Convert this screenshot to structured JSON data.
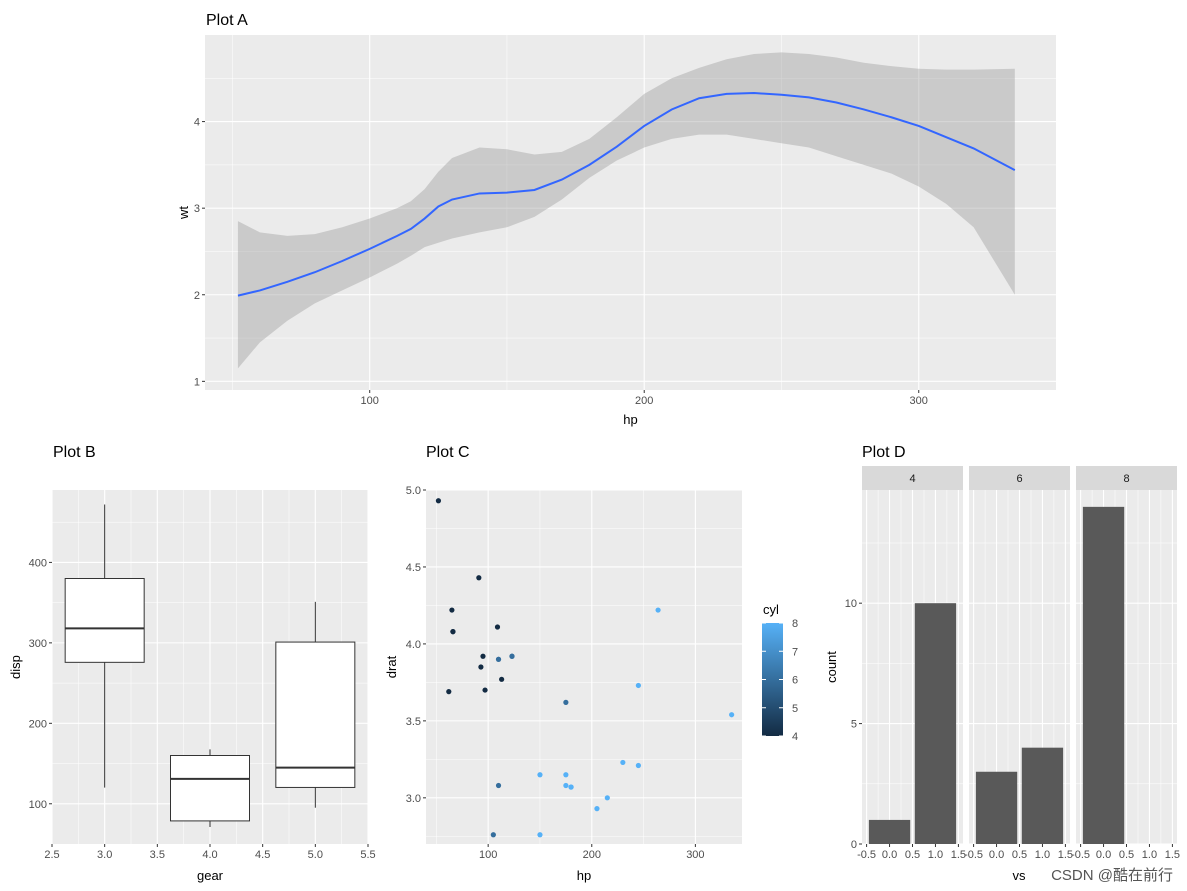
{
  "chart_data": [
    {
      "id": "A",
      "type": "line",
      "title": "Plot A",
      "xlabel": "hp",
      "ylabel": "wt",
      "xlim": [
        40,
        350
      ],
      "ylim": [
        0.9,
        5.0
      ],
      "xticks": [
        100,
        200,
        300
      ],
      "yticks": [
        1,
        2,
        3,
        4
      ],
      "series": [
        {
          "x": [
            52,
            60,
            70,
            80,
            90,
            100,
            110,
            115,
            120,
            125,
            130,
            140,
            150,
            160,
            170,
            180,
            190,
            200,
            210,
            220,
            230,
            240,
            250,
            260,
            270,
            280,
            290,
            300,
            310,
            320,
            335
          ],
          "y": [
            1.99,
            2.05,
            2.15,
            2.26,
            2.39,
            2.53,
            2.68,
            2.76,
            2.88,
            3.02,
            3.1,
            3.17,
            3.18,
            3.21,
            3.33,
            3.5,
            3.71,
            3.95,
            4.14,
            4.27,
            4.32,
            4.33,
            4.31,
            4.28,
            4.22,
            4.14,
            4.05,
            3.95,
            3.82,
            3.69,
            3.44
          ],
          "lower": [
            1.15,
            1.45,
            1.7,
            1.9,
            2.05,
            2.2,
            2.36,
            2.45,
            2.55,
            2.6,
            2.65,
            2.72,
            2.78,
            2.9,
            3.1,
            3.35,
            3.55,
            3.7,
            3.8,
            3.85,
            3.85,
            3.8,
            3.75,
            3.7,
            3.6,
            3.5,
            3.4,
            3.25,
            3.05,
            2.78,
            2.0
          ],
          "upper": [
            2.85,
            2.72,
            2.68,
            2.7,
            2.78,
            2.88,
            3.0,
            3.08,
            3.22,
            3.42,
            3.58,
            3.7,
            3.68,
            3.62,
            3.65,
            3.8,
            4.05,
            4.32,
            4.5,
            4.62,
            4.72,
            4.78,
            4.8,
            4.78,
            4.74,
            4.68,
            4.64,
            4.61,
            4.6,
            4.6,
            4.61
          ]
        }
      ]
    },
    {
      "id": "B",
      "type": "boxplot",
      "title": "Plot B",
      "xlabel": "gear",
      "ylabel": "disp",
      "xlim": [
        2.5,
        5.5
      ],
      "ylim": [
        50,
        490
      ],
      "xticks": [
        "2.5",
        "3.0",
        "3.5",
        "4.0",
        "4.5",
        "5.0",
        "5.5"
      ],
      "yticks": [
        100,
        200,
        300,
        400
      ],
      "boxes": [
        {
          "x": 3,
          "min": 120.1,
          "q1": 275.8,
          "median": 318,
          "q3": 380,
          "max": 472
        },
        {
          "x": 4,
          "min": 71.1,
          "q1": 78.7,
          "median": 130.9,
          "q3": 160,
          "max": 167.6
        },
        {
          "x": 5,
          "min": 95.1,
          "q1": 120.3,
          "median": 145,
          "q3": 301,
          "max": 351
        }
      ]
    },
    {
      "id": "C",
      "type": "scatter",
      "title": "Plot C",
      "xlabel": "hp",
      "ylabel": "drat",
      "xlim": [
        40,
        345
      ],
      "ylim": [
        2.7,
        5.0
      ],
      "xticks": [
        100,
        200,
        300
      ],
      "yticks": [
        "3.0",
        "3.5",
        "4.0",
        "4.5",
        "5.0"
      ],
      "legend": {
        "title": "cyl",
        "ticks": [
          4,
          5,
          6,
          7,
          8
        ],
        "low": "#132b43",
        "high": "#56b1f7"
      },
      "points": [
        {
          "x": 110,
          "y": 3.9,
          "c": 6
        },
        {
          "x": 110,
          "y": 3.9,
          "c": 6
        },
        {
          "x": 93,
          "y": 3.85,
          "c": 4
        },
        {
          "x": 110,
          "y": 3.08,
          "c": 6
        },
        {
          "x": 175,
          "y": 3.15,
          "c": 8
        },
        {
          "x": 105,
          "y": 2.76,
          "c": 6
        },
        {
          "x": 245,
          "y": 3.21,
          "c": 8
        },
        {
          "x": 62,
          "y": 3.69,
          "c": 4
        },
        {
          "x": 95,
          "y": 3.92,
          "c": 4
        },
        {
          "x": 123,
          "y": 3.92,
          "c": 6
        },
        {
          "x": 123,
          "y": 3.92,
          "c": 6
        },
        {
          "x": 180,
          "y": 3.07,
          "c": 8
        },
        {
          "x": 180,
          "y": 3.07,
          "c": 8
        },
        {
          "x": 180,
          "y": 3.07,
          "c": 8
        },
        {
          "x": 205,
          "y": 2.93,
          "c": 8
        },
        {
          "x": 215,
          "y": 3.0,
          "c": 8
        },
        {
          "x": 230,
          "y": 3.23,
          "c": 8
        },
        {
          "x": 66,
          "y": 4.08,
          "c": 4
        },
        {
          "x": 52,
          "y": 4.93,
          "c": 4
        },
        {
          "x": 65,
          "y": 4.22,
          "c": 4
        },
        {
          "x": 97,
          "y": 3.7,
          "c": 4
        },
        {
          "x": 150,
          "y": 2.76,
          "c": 8
        },
        {
          "x": 150,
          "y": 3.15,
          "c": 8
        },
        {
          "x": 245,
          "y": 3.73,
          "c": 8
        },
        {
          "x": 175,
          "y": 3.08,
          "c": 8
        },
        {
          "x": 66,
          "y": 4.08,
          "c": 4
        },
        {
          "x": 91,
          "y": 4.43,
          "c": 4
        },
        {
          "x": 113,
          "y": 3.77,
          "c": 4
        },
        {
          "x": 264,
          "y": 4.22,
          "c": 8
        },
        {
          "x": 175,
          "y": 3.62,
          "c": 6
        },
        {
          "x": 335,
          "y": 3.54,
          "c": 8
        },
        {
          "x": 109,
          "y": 4.11,
          "c": 4
        }
      ]
    },
    {
      "id": "D",
      "type": "bar",
      "title": "Plot D",
      "xlabel": "vs",
      "ylabel": "count",
      "xlim": [
        -0.6,
        1.6
      ],
      "ylim": [
        0,
        14.7
      ],
      "xticks": [
        "-0.5",
        "0.0",
        "0.5",
        "1.0",
        "1.5"
      ],
      "yticks": [
        0,
        5,
        10
      ],
      "facets": [
        {
          "label": "4",
          "bars": [
            {
              "x": 0,
              "count": 1
            },
            {
              "x": 1,
              "count": 10
            }
          ]
        },
        {
          "label": "6",
          "bars": [
            {
              "x": 0,
              "count": 3
            },
            {
              "x": 1,
              "count": 4
            }
          ]
        },
        {
          "label": "8",
          "bars": [
            {
              "x": 0,
              "count": 14
            }
          ]
        }
      ]
    }
  ],
  "watermark": "CSDN @酷在前行"
}
